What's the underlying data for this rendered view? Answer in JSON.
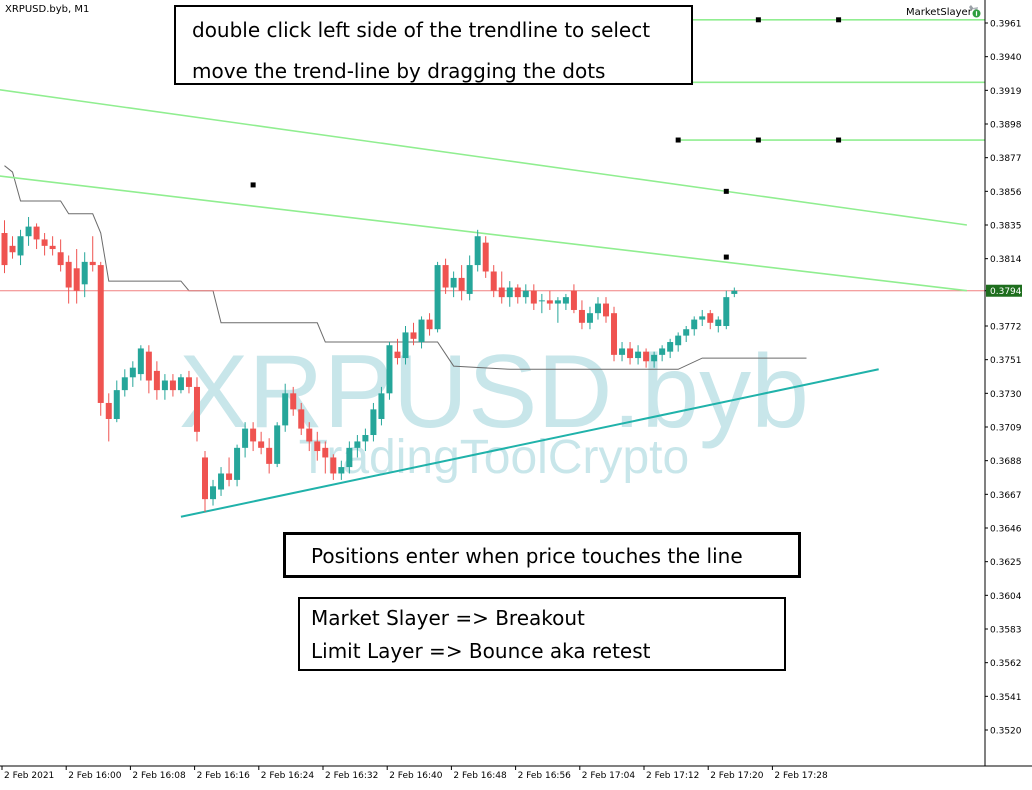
{
  "header": {
    "symbol_label": "XRPUSD.byb, M1",
    "ea_name": "MarketSlayer"
  },
  "watermark": {
    "symbol": "XRPUSD.byb",
    "brand": "TradingToolCrypto"
  },
  "annotations": {
    "top": [
      "double click left side of the trendline to select",
      "move the trend-line by dragging the dots"
    ],
    "middle": "Positions enter when price touches the line",
    "bottom": [
      "Market Slayer => Breakout",
      "Limit Layer => Bounce aka retest"
    ]
  },
  "price_axis": {
    "ticks": [
      "0.3961",
      "0.3940",
      "0.3919",
      "0.3898",
      "0.3877",
      "0.3856",
      "0.3835",
      "0.3814",
      "0.3794",
      "0.3772",
      "0.3751",
      "0.3730",
      "0.3709",
      "0.3688",
      "0.3667",
      "0.3646",
      "0.3625",
      "0.3604",
      "0.3583",
      "0.3562",
      "0.3541",
      "0.3520"
    ],
    "current_price": "0.3794"
  },
  "time_axis": {
    "ticks": [
      "2 Feb 2021",
      "2 Feb 16:00",
      "2 Feb 16:08",
      "2 Feb 16:16",
      "2 Feb 16:24",
      "2 Feb 16:32",
      "2 Feb 16:40",
      "2 Feb 16:48",
      "2 Feb 16:56",
      "2 Feb 17:04",
      "2 Feb 17:12",
      "2 Feb 17:20",
      "2 Feb 17:28"
    ]
  },
  "colors": {
    "bull": "#26a69a",
    "bear": "#ef5350",
    "trendline_green": "#90ee90",
    "support_line": "#20b2aa",
    "price_line": "#f08080",
    "price_label_bg": "#1e6e1e",
    "watermark": "#c8e6ea"
  },
  "chart_data": {
    "type": "candlestick",
    "timeframe": "M1",
    "candles": [
      {
        "o": 0.383,
        "h": 0.3838,
        "l": 0.3805,
        "c": 0.381
      },
      {
        "o": 0.3822,
        "h": 0.3828,
        "l": 0.3814,
        "c": 0.3818
      },
      {
        "o": 0.3816,
        "h": 0.3832,
        "l": 0.381,
        "c": 0.3828
      },
      {
        "o": 0.3828,
        "h": 0.384,
        "l": 0.3822,
        "c": 0.3834
      },
      {
        "o": 0.3834,
        "h": 0.3836,
        "l": 0.382,
        "c": 0.3826
      },
      {
        "o": 0.3826,
        "h": 0.383,
        "l": 0.3816,
        "c": 0.3822
      },
      {
        "o": 0.3822,
        "h": 0.3828,
        "l": 0.3816,
        "c": 0.382
      },
      {
        "o": 0.3818,
        "h": 0.3826,
        "l": 0.3806,
        "c": 0.381
      },
      {
        "o": 0.3812,
        "h": 0.3816,
        "l": 0.3786,
        "c": 0.3796
      },
      {
        "o": 0.3808,
        "h": 0.382,
        "l": 0.3786,
        "c": 0.3794
      },
      {
        "o": 0.3798,
        "h": 0.3818,
        "l": 0.379,
        "c": 0.3812
      },
      {
        "o": 0.3812,
        "h": 0.3828,
        "l": 0.3806,
        "c": 0.381
      },
      {
        "o": 0.381,
        "h": 0.3812,
        "l": 0.3716,
        "c": 0.3724
      },
      {
        "o": 0.3724,
        "h": 0.373,
        "l": 0.37,
        "c": 0.3714
      },
      {
        "o": 0.3714,
        "h": 0.3738,
        "l": 0.3712,
        "c": 0.3732
      },
      {
        "o": 0.3732,
        "h": 0.3745,
        "l": 0.3728,
        "c": 0.374
      },
      {
        "o": 0.374,
        "h": 0.375,
        "l": 0.3734,
        "c": 0.3746
      },
      {
        "o": 0.3742,
        "h": 0.376,
        "l": 0.3738,
        "c": 0.3758
      },
      {
        "o": 0.3756,
        "h": 0.376,
        "l": 0.373,
        "c": 0.3738
      },
      {
        "o": 0.3744,
        "h": 0.375,
        "l": 0.3726,
        "c": 0.3732
      },
      {
        "o": 0.3732,
        "h": 0.3742,
        "l": 0.3726,
        "c": 0.3738
      },
      {
        "o": 0.3738,
        "h": 0.3742,
        "l": 0.3728,
        "c": 0.3732
      },
      {
        "o": 0.3732,
        "h": 0.3742,
        "l": 0.373,
        "c": 0.374
      },
      {
        "o": 0.374,
        "h": 0.3744,
        "l": 0.373,
        "c": 0.3734
      },
      {
        "o": 0.3734,
        "h": 0.374,
        "l": 0.37,
        "c": 0.3706
      },
      {
        "o": 0.369,
        "h": 0.3694,
        "l": 0.3656,
        "c": 0.3664
      },
      {
        "o": 0.3664,
        "h": 0.3676,
        "l": 0.366,
        "c": 0.3672
      },
      {
        "o": 0.367,
        "h": 0.3684,
        "l": 0.3666,
        "c": 0.368
      },
      {
        "o": 0.368,
        "h": 0.369,
        "l": 0.3672,
        "c": 0.3676
      },
      {
        "o": 0.3676,
        "h": 0.3698,
        "l": 0.3672,
        "c": 0.3696
      },
      {
        "o": 0.3696,
        "h": 0.3712,
        "l": 0.369,
        "c": 0.3708
      },
      {
        "o": 0.3708,
        "h": 0.3712,
        "l": 0.3694,
        "c": 0.37
      },
      {
        "o": 0.37,
        "h": 0.3706,
        "l": 0.3692,
        "c": 0.3696
      },
      {
        "o": 0.3696,
        "h": 0.3702,
        "l": 0.368,
        "c": 0.3686
      },
      {
        "o": 0.3686,
        "h": 0.3712,
        "l": 0.3684,
        "c": 0.371
      },
      {
        "o": 0.371,
        "h": 0.3736,
        "l": 0.3706,
        "c": 0.373
      },
      {
        "o": 0.373,
        "h": 0.3734,
        "l": 0.3716,
        "c": 0.372
      },
      {
        "o": 0.372,
        "h": 0.3724,
        "l": 0.3704,
        "c": 0.3708
      },
      {
        "o": 0.3708,
        "h": 0.3712,
        "l": 0.3694,
        "c": 0.37
      },
      {
        "o": 0.37,
        "h": 0.3706,
        "l": 0.3688,
        "c": 0.3694
      },
      {
        "o": 0.3696,
        "h": 0.37,
        "l": 0.368,
        "c": 0.369
      },
      {
        "o": 0.369,
        "h": 0.3692,
        "l": 0.3676,
        "c": 0.368
      },
      {
        "o": 0.368,
        "h": 0.3688,
        "l": 0.3676,
        "c": 0.3684
      },
      {
        "o": 0.3684,
        "h": 0.37,
        "l": 0.368,
        "c": 0.3696
      },
      {
        "o": 0.3696,
        "h": 0.3704,
        "l": 0.369,
        "c": 0.37
      },
      {
        "o": 0.37,
        "h": 0.3708,
        "l": 0.3694,
        "c": 0.3704
      },
      {
        "o": 0.3704,
        "h": 0.3724,
        "l": 0.37,
        "c": 0.372
      },
      {
        "o": 0.3714,
        "h": 0.3734,
        "l": 0.371,
        "c": 0.373
      },
      {
        "o": 0.373,
        "h": 0.3762,
        "l": 0.3726,
        "c": 0.376
      },
      {
        "o": 0.3756,
        "h": 0.3764,
        "l": 0.3748,
        "c": 0.3752
      },
      {
        "o": 0.3752,
        "h": 0.3772,
        "l": 0.3748,
        "c": 0.3768
      },
      {
        "o": 0.3768,
        "h": 0.3774,
        "l": 0.376,
        "c": 0.3764
      },
      {
        "o": 0.3762,
        "h": 0.3778,
        "l": 0.3758,
        "c": 0.3776
      },
      {
        "o": 0.3776,
        "h": 0.378,
        "l": 0.3766,
        "c": 0.377
      },
      {
        "o": 0.377,
        "h": 0.3812,
        "l": 0.3768,
        "c": 0.381
      },
      {
        "o": 0.381,
        "h": 0.3814,
        "l": 0.3792,
        "c": 0.3796
      },
      {
        "o": 0.3796,
        "h": 0.3806,
        "l": 0.379,
        "c": 0.3802
      },
      {
        "o": 0.3802,
        "h": 0.381,
        "l": 0.3788,
        "c": 0.3794
      },
      {
        "o": 0.3792,
        "h": 0.3816,
        "l": 0.3788,
        "c": 0.381
      },
      {
        "o": 0.381,
        "h": 0.3832,
        "l": 0.3806,
        "c": 0.3828
      },
      {
        "o": 0.3824,
        "h": 0.3828,
        "l": 0.3802,
        "c": 0.3806
      },
      {
        "o": 0.3806,
        "h": 0.381,
        "l": 0.379,
        "c": 0.3794
      },
      {
        "o": 0.3796,
        "h": 0.3806,
        "l": 0.3786,
        "c": 0.379
      },
      {
        "o": 0.379,
        "h": 0.38,
        "l": 0.3784,
        "c": 0.3796
      },
      {
        "o": 0.3796,
        "h": 0.3798,
        "l": 0.3786,
        "c": 0.379
      },
      {
        "o": 0.379,
        "h": 0.3798,
        "l": 0.3786,
        "c": 0.3794
      },
      {
        "o": 0.3794,
        "h": 0.3798,
        "l": 0.3782,
        "c": 0.3786
      },
      {
        "o": 0.3788,
        "h": 0.3792,
        "l": 0.378,
        "c": 0.3788
      },
      {
        "o": 0.3788,
        "h": 0.3794,
        "l": 0.3782,
        "c": 0.3786
      },
      {
        "o": 0.3786,
        "h": 0.379,
        "l": 0.3774,
        "c": 0.3788
      },
      {
        "o": 0.3786,
        "h": 0.3792,
        "l": 0.3782,
        "c": 0.379
      },
      {
        "o": 0.3794,
        "h": 0.3798,
        "l": 0.378,
        "c": 0.3782
      },
      {
        "o": 0.3782,
        "h": 0.3788,
        "l": 0.377,
        "c": 0.3774
      },
      {
        "o": 0.3774,
        "h": 0.3784,
        "l": 0.377,
        "c": 0.378
      },
      {
        "o": 0.378,
        "h": 0.379,
        "l": 0.3776,
        "c": 0.3786
      },
      {
        "o": 0.3786,
        "h": 0.379,
        "l": 0.3774,
        "c": 0.3778
      },
      {
        "o": 0.378,
        "h": 0.3784,
        "l": 0.375,
        "c": 0.3754
      },
      {
        "o": 0.3754,
        "h": 0.3762,
        "l": 0.375,
        "c": 0.3758
      },
      {
        "o": 0.3758,
        "h": 0.3762,
        "l": 0.3748,
        "c": 0.3752
      },
      {
        "o": 0.3752,
        "h": 0.376,
        "l": 0.3748,
        "c": 0.3756
      },
      {
        "o": 0.3756,
        "h": 0.3758,
        "l": 0.3746,
        "c": 0.375
      },
      {
        "o": 0.375,
        "h": 0.3756,
        "l": 0.3746,
        "c": 0.3754
      },
      {
        "o": 0.3754,
        "h": 0.376,
        "l": 0.375,
        "c": 0.3758
      },
      {
        "o": 0.3756,
        "h": 0.3764,
        "l": 0.3752,
        "c": 0.3762
      },
      {
        "o": 0.376,
        "h": 0.3768,
        "l": 0.3756,
        "c": 0.3766
      },
      {
        "o": 0.3766,
        "h": 0.3772,
        "l": 0.3762,
        "c": 0.377
      },
      {
        "o": 0.377,
        "h": 0.3778,
        "l": 0.3766,
        "c": 0.3776
      },
      {
        "o": 0.3776,
        "h": 0.3782,
        "l": 0.3772,
        "c": 0.3778
      },
      {
        "o": 0.378,
        "h": 0.3782,
        "l": 0.377,
        "c": 0.3774
      },
      {
        "o": 0.3772,
        "h": 0.3778,
        "l": 0.3768,
        "c": 0.3776
      },
      {
        "o": 0.3772,
        "h": 0.3794,
        "l": 0.377,
        "c": 0.379
      },
      {
        "o": 0.3792,
        "h": 0.3796,
        "l": 0.379,
        "c": 0.3794
      }
    ],
    "indicator_line": [
      {
        "i": 0,
        "p": 0.3872
      },
      {
        "i": 1,
        "p": 0.3868
      },
      {
        "i": 2,
        "p": 0.385
      },
      {
        "i": 4,
        "p": 0.385
      },
      {
        "i": 7,
        "p": 0.385
      },
      {
        "i": 8,
        "p": 0.3842
      },
      {
        "i": 11,
        "p": 0.3842
      },
      {
        "i": 12,
        "p": 0.383
      },
      {
        "i": 13,
        "p": 0.38
      },
      {
        "i": 22,
        "p": 0.38
      },
      {
        "i": 23,
        "p": 0.3794
      },
      {
        "i": 26,
        "p": 0.3794
      },
      {
        "i": 27,
        "p": 0.3774
      },
      {
        "i": 39,
        "p": 0.3774
      },
      {
        "i": 40,
        "p": 0.3762
      },
      {
        "i": 54,
        "p": 0.3762
      },
      {
        "i": 56,
        "p": 0.3747
      },
      {
        "i": 63,
        "p": 0.3745
      },
      {
        "i": 84,
        "p": 0.3745
      },
      {
        "i": 87,
        "p": 0.3752
      },
      {
        "i": 100,
        "p": 0.3752
      }
    ],
    "green_trendlines": [
      {
        "p1": {
          "i": -3,
          "p": 0.3921
        },
        "p2": {
          "i": 120,
          "p": 0.3835
        },
        "anchors": [
          {
            "i": 90,
            "p": 0.3856
          },
          {
            "i": 90,
            "p": 0.3815
          }
        ]
      },
      {
        "p1": {
          "i": -3,
          "p": 0.3867
        },
        "p2": {
          "i": 120,
          "p": 0.3794
        },
        "anchors": [
          {
            "i": 31,
            "p": 0.386
          }
        ]
      }
    ],
    "horizontal_lines": [
      {
        "p": 0.3963,
        "i_from": 84,
        "anchors": [
          84,
          94,
          104
        ]
      },
      {
        "p": 0.3924,
        "i_from": 84,
        "anchors": []
      },
      {
        "p": 0.3888,
        "i_from": 84,
        "anchors": [
          84,
          94,
          104
        ]
      }
    ],
    "support_trendline": {
      "p1": {
        "i": 22,
        "p": 0.3653
      },
      "p2": {
        "i": 109,
        "p": 0.3745
      }
    },
    "current_price": 0.3794
  }
}
